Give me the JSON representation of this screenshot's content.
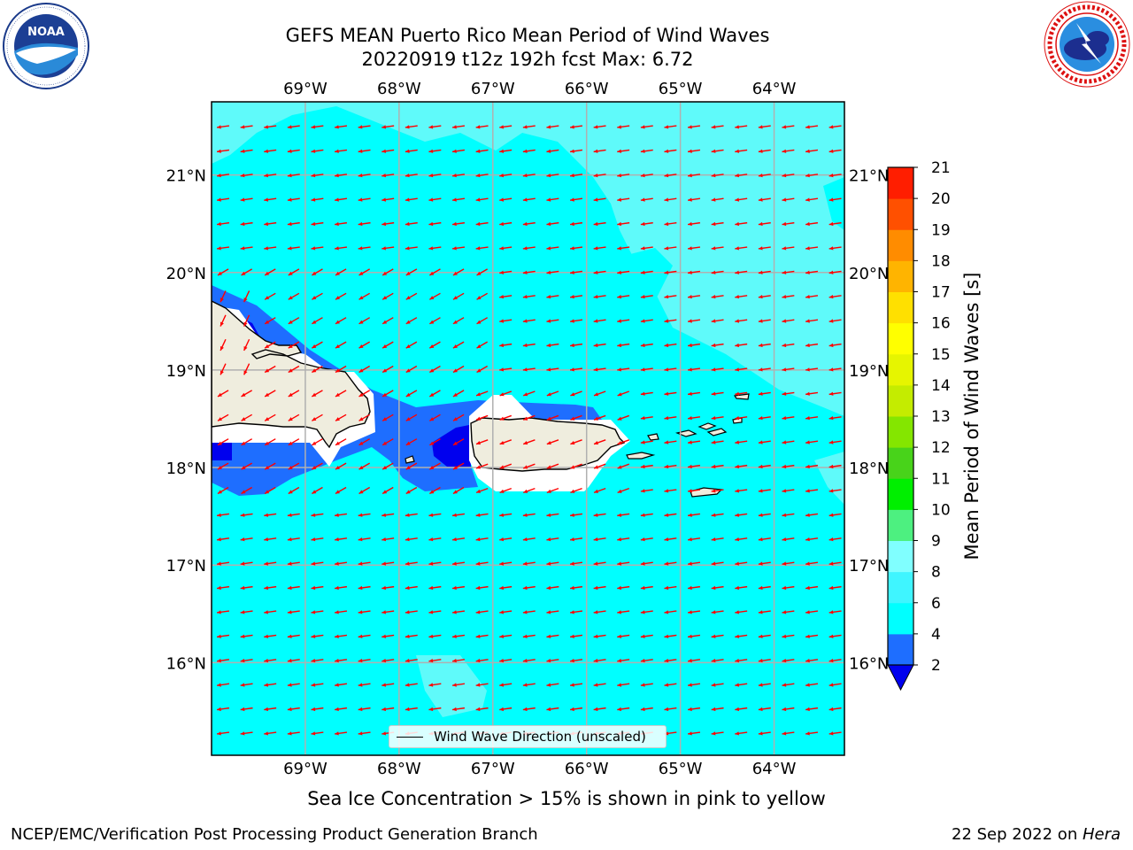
{
  "title": {
    "line1": "GEFS MEAN Puerto Rico Mean Period of Wind Waves",
    "line2": "20220919 t12z 192h fcst   Max: 6.72"
  },
  "logos": {
    "left": "noaa-logo",
    "right": "nws-logo"
  },
  "map": {
    "lon_ticks": [
      "69°W",
      "68°W",
      "67°W",
      "66°W",
      "65°W",
      "64°W"
    ],
    "lon_values": [
      -69,
      -68,
      -67,
      -66,
      -65,
      -64
    ],
    "lat_ticks": [
      "21°N",
      "20°N",
      "19°N",
      "18°N",
      "17°N",
      "16°N"
    ],
    "lat_values": [
      21,
      20,
      19,
      18,
      17,
      16
    ],
    "lon_range": [
      -70,
      -63.25
    ],
    "lat_range": [
      15.05,
      21.75
    ],
    "grid": true,
    "arrow_color": "#ff0000",
    "field_color": "#00ffff"
  },
  "legend": {
    "label": "Wind Wave Direction (unscaled)",
    "placement": "bottom-center"
  },
  "colorbar": {
    "label": "Mean Period of Wind Waves [s]",
    "ticks": [
      "2",
      "4",
      "6",
      "8",
      "9",
      "10",
      "11",
      "12",
      "13",
      "14",
      "15",
      "16",
      "17",
      "18",
      "19",
      "20",
      "21"
    ],
    "extend": "min",
    "under_color": "#0000ee",
    "colors": [
      "#1e6eff",
      "#00ffff",
      "#3ff5ff",
      "#80ffff",
      "#4df080",
      "#00ef00",
      "#48d31a",
      "#84e600",
      "#c4ec00",
      "#e6f500",
      "#ffff00",
      "#ffe000",
      "#ffb400",
      "#ff8c00",
      "#ff5000",
      "#ff1e00"
    ]
  },
  "subnote": "Sea Ice Concentration > 15% is shown in pink to yellow",
  "footer": {
    "left": "NCEP/EMC/Verification Post Processing Product Generation Branch",
    "date": "22 Sep 2022 on ",
    "machine": "Hera"
  }
}
